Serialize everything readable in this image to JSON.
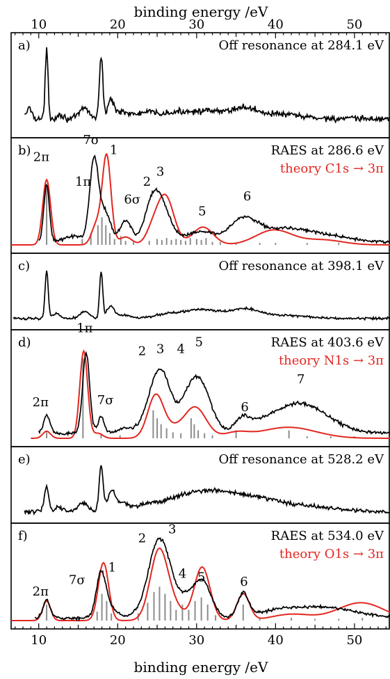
{
  "chart_data": {
    "type": "line",
    "xlabel_top": "binding energy /eV",
    "xlabel_bottom": "binding energy /eV",
    "xlim": [
      6.5,
      54.5
    ],
    "xticks": [
      10,
      20,
      30,
      40,
      50
    ],
    "xtick_labels": [
      "10",
      "20",
      "30",
      "40",
      "50"
    ],
    "colors": {
      "experiment": "#000000",
      "theory": "#e3261f",
      "sticks": "#8c8c8c"
    },
    "panels": [
      {
        "letter": "a)",
        "title": "Off resonance at 284.1 eV",
        "theory_label": "",
        "exp": {
          "baseline": 0.12,
          "noise": 0.022,
          "xmin": 8.2,
          "xmax": 54.5,
          "peaks": [
            [
              8.8,
              0.12,
              0.35
            ],
            [
              11.0,
              0.78,
              0.18
            ],
            [
              12.7,
              0.05,
              0.4
            ],
            [
              15.8,
              0.12,
              0.6
            ],
            [
              17.9,
              0.7,
              0.22
            ],
            [
              19.1,
              0.2,
              0.4
            ],
            [
              20.5,
              0.08,
              0.8
            ],
            [
              23.5,
              0.05,
              1.2
            ],
            [
              30.0,
              0.09,
              4
            ],
            [
              36.0,
              0.08,
              1.5
            ],
            [
              40.0,
              0.05,
              3
            ]
          ]
        },
        "theory": null,
        "sticks": [],
        "labels": []
      },
      {
        "letter": "b)",
        "title": "RAES at 286.6 eV",
        "theory_label": "theory C1s → 3π",
        "exp": {
          "baseline": 0.03,
          "noise": 0.01,
          "xmin": 10.0,
          "xmax": 54.5,
          "peaks": [
            [
              11.0,
              0.58,
              0.35
            ],
            [
              14.5,
              0.06,
              1.2
            ],
            [
              17.0,
              0.82,
              0.55
            ],
            [
              18.4,
              0.3,
              0.7
            ],
            [
              21.0,
              0.22,
              0.7
            ],
            [
              24.5,
              0.45,
              1.0
            ],
            [
              26.0,
              0.22,
              0.9
            ],
            [
              28.5,
              0.05,
              1.5
            ],
            [
              31.0,
              0.09,
              1.4
            ],
            [
              36.0,
              0.24,
              1.8
            ],
            [
              41.0,
              0.12,
              2.5
            ],
            [
              46.0,
              0.07,
              3
            ]
          ]
        },
        "theory": {
          "xmin": 6.5,
          "xmax": 54.5,
          "baseline": 0.0,
          "peaks": [
            [
              11.0,
              0.66,
              0.5
            ],
            [
              18.6,
              0.9,
              0.55
            ],
            [
              17.3,
              0.2,
              0.6
            ],
            [
              21.0,
              0.08,
              0.8
            ],
            [
              26.0,
              0.5,
              1.1
            ],
            [
              24.3,
              0.1,
              0.8
            ],
            [
              30.8,
              0.18,
              1.3
            ],
            [
              39.8,
              0.15,
              2.3
            ],
            [
              46.0,
              0.05,
              2.5
            ]
          ]
        },
        "sticks": [
          [
            11.0,
            0.62
          ],
          [
            15.5,
            0.06
          ],
          [
            16.6,
            0.12
          ],
          [
            17.5,
            0.2
          ],
          [
            18.0,
            0.28
          ],
          [
            18.5,
            0.2
          ],
          [
            19.0,
            0.12
          ],
          [
            19.6,
            0.06
          ],
          [
            20.4,
            0.09
          ],
          [
            21.0,
            0.04
          ],
          [
            22.0,
            0.03
          ],
          [
            24.0,
            0.04
          ],
          [
            25.0,
            0.06
          ],
          [
            25.6,
            0.05
          ],
          [
            26.2,
            0.07
          ],
          [
            26.8,
            0.05
          ],
          [
            27.4,
            0.06
          ],
          [
            28.0,
            0.05
          ],
          [
            28.6,
            0.04
          ],
          [
            29.2,
            0.07
          ],
          [
            30.0,
            0.06
          ],
          [
            30.6,
            0.05
          ],
          [
            31.2,
            0.07
          ],
          [
            32.0,
            0.03
          ],
          [
            33.0,
            0.03
          ],
          [
            35.0,
            0.02
          ],
          [
            38.0,
            0.02
          ],
          [
            40.0,
            0.02
          ],
          [
            44.0,
            0.02
          ],
          [
            48.0,
            0.02
          ]
        ],
        "labels": [
          {
            "text": "2π",
            "x": 9.3,
            "y": 0.85
          },
          {
            "text": "7σ",
            "x": 15.6,
            "y": 1.02
          },
          {
            "text": "1",
            "x": 19.0,
            "y": 0.92
          },
          {
            "text": "1π",
            "x": 14.6,
            "y": 0.6
          },
          {
            "text": "6σ",
            "x": 20.8,
            "y": 0.42
          },
          {
            "text": "2",
            "x": 23.2,
            "y": 0.6
          },
          {
            "text": "3",
            "x": 24.9,
            "y": 0.7
          },
          {
            "text": "5",
            "x": 30.2,
            "y": 0.3
          },
          {
            "text": "6",
            "x": 35.9,
            "y": 0.45
          }
        ]
      },
      {
        "letter": "c)",
        "title": "Off resonance at 398.1 eV",
        "theory_label": "",
        "exp": {
          "baseline": 0.05,
          "noise": 0.012,
          "xmin": 6.8,
          "xmax": 54.5,
          "peaks": [
            [
              11.0,
              0.8,
              0.2
            ],
            [
              12.2,
              0.08,
              0.5
            ],
            [
              15.8,
              0.12,
              0.6
            ],
            [
              17.9,
              0.78,
              0.2
            ],
            [
              19.1,
              0.2,
              0.5
            ],
            [
              20.8,
              0.05,
              0.8
            ],
            [
              26.0,
              0.06,
              1.6
            ],
            [
              30.5,
              0.15,
              2.2
            ],
            [
              36.0,
              0.15,
              1.8
            ],
            [
              41.0,
              0.05,
              3
            ]
          ]
        },
        "theory": null,
        "sticks": [],
        "labels": []
      },
      {
        "letter": "d)",
        "title": "RAES at 403.6 eV",
        "theory_label": "theory N1s → 3π",
        "exp": {
          "baseline": 0.05,
          "noise": 0.011,
          "xmin": 10.0,
          "xmax": 54.5,
          "peaks": [
            [
              11.0,
              0.18,
              0.4
            ],
            [
              16.0,
              0.8,
              0.45
            ],
            [
              17.9,
              0.16,
              0.4
            ],
            [
              21.0,
              0.05,
              1.0
            ],
            [
              24.8,
              0.45,
              1.2
            ],
            [
              26.0,
              0.28,
              1.0
            ],
            [
              29.5,
              0.45,
              1.5
            ],
            [
              31.0,
              0.2,
              1.2
            ],
            [
              35.8,
              0.1,
              0.8
            ],
            [
              37.0,
              0.05,
              2
            ],
            [
              43.0,
              0.3,
              3.5
            ]
          ]
        },
        "theory": {
          "xmin": 9.0,
          "xmax": 54.5,
          "baseline": 0.0,
          "peaks": [
            [
              11.0,
              0.07,
              0.5
            ],
            [
              15.7,
              0.87,
              0.5
            ],
            [
              17.5,
              0.05,
              0.6
            ],
            [
              24.8,
              0.42,
              1.0
            ],
            [
              26.8,
              0.08,
              1.2
            ],
            [
              29.8,
              0.31,
              1.4
            ],
            [
              35.0,
              0.05,
              1.5
            ],
            [
              41.6,
              0.11,
              3.5
            ]
          ]
        },
        "sticks": [
          [
            11.0,
            0.06
          ],
          [
            15.6,
            0.8
          ],
          [
            17.9,
            0.05
          ],
          [
            20.3,
            0.03
          ],
          [
            24.5,
            0.28
          ],
          [
            25.0,
            0.2
          ],
          [
            25.5,
            0.14
          ],
          [
            26.2,
            0.1
          ],
          [
            27.0,
            0.06
          ],
          [
            28.0,
            0.05
          ],
          [
            29.3,
            0.2
          ],
          [
            29.7,
            0.14
          ],
          [
            30.2,
            0.08
          ],
          [
            31.0,
            0.05
          ],
          [
            32.0,
            0.03
          ],
          [
            35.0,
            0.08
          ],
          [
            41.7,
            0.08
          ],
          [
            44.0,
            0.02
          ],
          [
            47.0,
            0.02
          ],
          [
            50.0,
            0.02
          ]
        ],
        "labels": [
          {
            "text": "2π",
            "x": 9.2,
            "y": 0.32
          },
          {
            "text": "1π",
            "x": 14.8,
            "y": 1.06
          },
          {
            "text": "7σ",
            "x": 17.4,
            "y": 0.34
          },
          {
            "text": "2",
            "x": 22.6,
            "y": 0.83
          },
          {
            "text": "3",
            "x": 24.9,
            "y": 0.85
          },
          {
            "text": "4",
            "x": 27.5,
            "y": 0.85
          },
          {
            "text": "5",
            "x": 29.8,
            "y": 0.92
          },
          {
            "text": "6",
            "x": 35.6,
            "y": 0.27
          },
          {
            "text": "7",
            "x": 42.7,
            "y": 0.55
          }
        ]
      },
      {
        "letter": "e)",
        "title": "Off resonance at 528.2 eV",
        "theory_label": "",
        "exp": {
          "baseline": 0.05,
          "noise": 0.022,
          "xmin": 8.2,
          "xmax": 54.5,
          "peaks": [
            [
              11.0,
              0.4,
              0.3
            ],
            [
              12.6,
              0.08,
              0.5
            ],
            [
              15.6,
              0.15,
              0.6
            ],
            [
              17.9,
              0.75,
              0.25
            ],
            [
              19.2,
              0.32,
              0.5
            ],
            [
              20.5,
              0.12,
              0.8
            ],
            [
              23.5,
              0.05,
              1.2
            ],
            [
              31.0,
              0.35,
              4.5
            ],
            [
              38.0,
              0.12,
              3
            ],
            [
              44.0,
              0.08,
              4
            ]
          ]
        },
        "theory": null,
        "sticks": [],
        "labels": []
      },
      {
        "letter": "f)",
        "title": "RAES at 534.0 eV",
        "theory_label": "theory O1s → 3π",
        "exp": {
          "baseline": 0.03,
          "noise": 0.01,
          "xmin": 9.5,
          "xmax": 54.5,
          "peaks": [
            [
              11.0,
              0.2,
              0.45
            ],
            [
              17.9,
              0.52,
              0.6
            ],
            [
              19.3,
              0.1,
              0.7
            ],
            [
              22.5,
              0.05,
              1.0
            ],
            [
              24.8,
              0.68,
              1.1
            ],
            [
              26.2,
              0.4,
              1.0
            ],
            [
              28.5,
              0.22,
              1.3
            ],
            [
              30.8,
              0.38,
              1.1
            ],
            [
              35.9,
              0.26,
              0.7
            ],
            [
              40.0,
              0.06,
              2.5
            ],
            [
              46.0,
              0.12,
              4
            ]
          ]
        },
        "theory": {
          "xmin": 6.5,
          "xmax": 54.5,
          "baseline": 0.0,
          "peaks": [
            [
              11.0,
              0.22,
              0.5
            ],
            [
              18.2,
              0.65,
              0.65
            ],
            [
              25.2,
              0.76,
              1.1
            ],
            [
              27.0,
              0.15,
              1.2
            ],
            [
              30.7,
              0.6,
              1.0
            ],
            [
              35.9,
              0.3,
              0.8
            ],
            [
              42.0,
              0.07,
              2.5
            ],
            [
              50.8,
              0.2,
              3
            ]
          ]
        },
        "sticks": [
          [
            11.0,
            0.18
          ],
          [
            17.4,
            0.1
          ],
          [
            18.0,
            0.3
          ],
          [
            18.6,
            0.22
          ],
          [
            19.2,
            0.08
          ],
          [
            22.6,
            0.08
          ],
          [
            23.8,
            0.2
          ],
          [
            24.6,
            0.32
          ],
          [
            25.3,
            0.38
          ],
          [
            26.0,
            0.3
          ],
          [
            26.7,
            0.22
          ],
          [
            27.4,
            0.12
          ],
          [
            28.2,
            0.18
          ],
          [
            29.0,
            0.12
          ],
          [
            29.8,
            0.22
          ],
          [
            30.6,
            0.26
          ],
          [
            31.4,
            0.18
          ],
          [
            32.4,
            0.06
          ],
          [
            35.9,
            0.18
          ],
          [
            38.0,
            0.03
          ],
          [
            42.0,
            0.03
          ],
          [
            45.0,
            0.02
          ],
          [
            48.0,
            0.02
          ],
          [
            51.0,
            0.03
          ]
        ],
        "labels": [
          {
            "text": "2π",
            "x": 9.2,
            "y": 0.28
          },
          {
            "text": "7σ",
            "x": 13.8,
            "y": 0.41
          },
          {
            "text": "1",
            "x": 18.8,
            "y": 0.55
          },
          {
            "text": "2",
            "x": 22.6,
            "y": 0.88
          },
          {
            "text": "3",
            "x": 26.4,
            "y": 0.98
          },
          {
            "text": "4",
            "x": 27.7,
            "y": 0.48
          },
          {
            "text": "5",
            "x": 30.1,
            "y": 0.44
          },
          {
            "text": "6",
            "x": 35.5,
            "y": 0.39
          }
        ]
      }
    ]
  }
}
